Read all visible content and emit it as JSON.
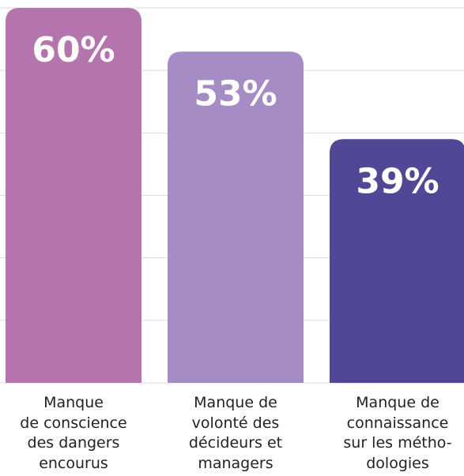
{
  "chart_data": {
    "type": "bar",
    "categories": [
      "Manque\nde conscience\ndes dangers\nencourus",
      "Manque de\nvolonté des\ndécideurs et\nmanagers",
      "Manque de\nconnaissance\nsur les métho-\ndologies"
    ],
    "values": [
      60,
      53,
      39
    ],
    "value_labels": [
      "60%",
      "53%",
      "39%"
    ],
    "colors": [
      "#b574ad",
      "#a58cc4",
      "#514797"
    ],
    "ylim": [
      0,
      60
    ],
    "yticks": [
      0,
      10,
      20,
      30,
      40,
      50,
      60
    ],
    "grid": true
  }
}
